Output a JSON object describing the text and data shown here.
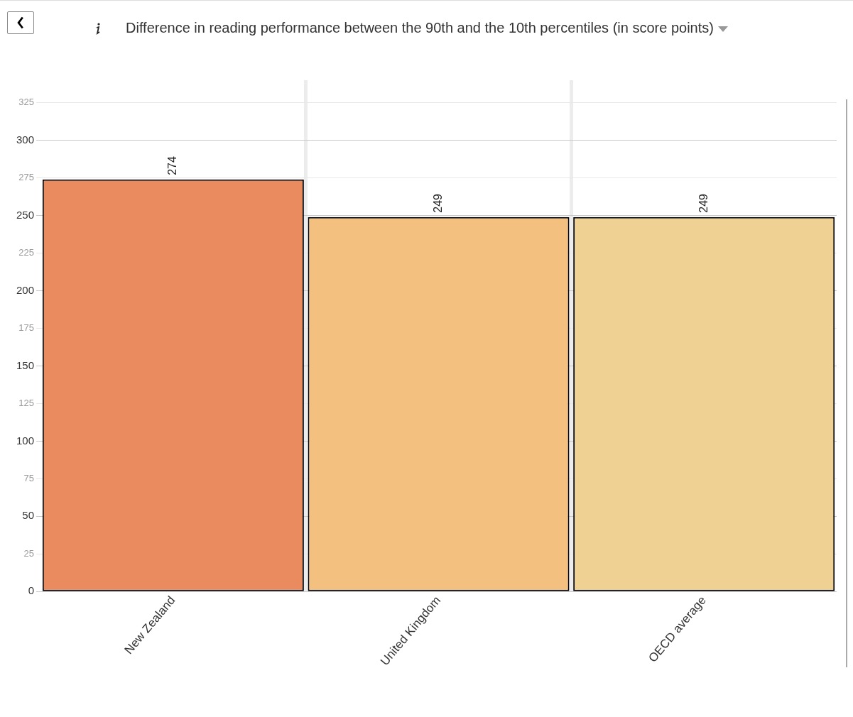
{
  "chart_data": {
    "type": "bar",
    "title": "Difference in reading performance between the 90th and the 10th percentiles (in score points)",
    "categories": [
      "New Zealand",
      "United Kingdom",
      "OECD average"
    ],
    "values": [
      274,
      249,
      249
    ],
    "colors": [
      "#e98b5f",
      "#f3c07f",
      "#f0d194"
    ],
    "ylim": [
      0,
      340
    ],
    "yticks": [
      0,
      25,
      50,
      75,
      100,
      125,
      150,
      175,
      200,
      225,
      250,
      275,
      300,
      325
    ],
    "grid": true,
    "data_labels": true,
    "legend": false
  }
}
